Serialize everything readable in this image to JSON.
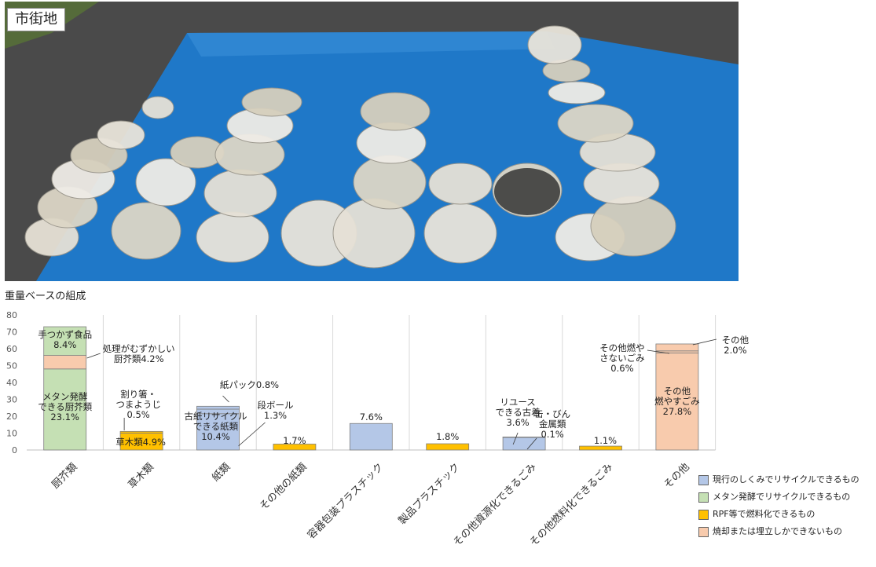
{
  "photo": {
    "label": "市街地",
    "description_icon": "garbage-bags-on-blue-tarp-photo"
  },
  "chart_subtitle": "重量ベースの組成",
  "colors": {
    "recyclable": "#b4c7e7",
    "methane": "#c5e0b4",
    "rpf": "#ffc000",
    "burn_landfill": "#f8cbad",
    "bar_border": "#7f7f7f",
    "grid": "#d9d9d9",
    "tarp": "#1f78c8",
    "asphalt": "#4a4a4a"
  },
  "legend": [
    {
      "label": "現行のしくみでリサイクルできるもの",
      "color_key": "recyclable"
    },
    {
      "label": "メタン発酵でリサイクルできるもの",
      "color_key": "methane"
    },
    {
      "label": "RPF等で燃料化できるもの",
      "color_key": "rpf"
    },
    {
      "label": "焼却または埋立しかできないもの",
      "color_key": "burn_landfill"
    }
  ],
  "chart_data": {
    "type": "bar",
    "stacked": true,
    "title": "",
    "ylim": [
      0,
      80
    ],
    "yticks": [
      0,
      10,
      20,
      30,
      40,
      50,
      60,
      70,
      80
    ],
    "gridlines": "vertical separators between categories",
    "categories": [
      "厨芥類",
      "草木類",
      "紙類",
      "その他の紙類",
      "容器包装プラスチック",
      "製品プラスチック",
      "その他資源化できるごみ",
      "その他燃料化できるごみ",
      "その他"
    ],
    "stacks": [
      [
        {
          "label": "メタン発酵できる厨芥類",
          "pct": "23.1%",
          "value": 48,
          "color_key": "methane"
        },
        {
          "label": "処理がむずかしい厨芥類",
          "pct": "4.2%",
          "value": 8,
          "color_key": "burn_landfill"
        },
        {
          "label": "手つかず食品",
          "pct": "8.4%",
          "value": 17,
          "color_key": "methane"
        }
      ],
      [
        {
          "label": "草木類",
          "pct": "4.9%",
          "value": 10,
          "color_key": "rpf"
        },
        {
          "label": "割り箸・つまようじ",
          "pct": "0.5%",
          "value": 1,
          "color_key": "rpf"
        }
      ],
      [
        {
          "label": "古紙リサイクルできる紙類",
          "pct": "10.4%",
          "value": 21.5,
          "color_key": "recyclable"
        },
        {
          "label": "段ボール",
          "pct": "1.3%",
          "value": 2.7,
          "color_key": "recyclable"
        },
        {
          "label": "紙パック",
          "pct": "0.8%",
          "value": 1.7,
          "color_key": "recyclable"
        }
      ],
      [
        {
          "label": "",
          "pct": "1.7%",
          "value": 3.5,
          "color_key": "rpf"
        }
      ],
      [
        {
          "label": "",
          "pct": "7.6%",
          "value": 15.7,
          "color_key": "recyclable"
        }
      ],
      [
        {
          "label": "",
          "pct": "1.8%",
          "value": 3.7,
          "color_key": "rpf"
        }
      ],
      [
        {
          "label": "リユースできる古着",
          "pct": "3.6%",
          "value": 7.5,
          "color_key": "recyclable"
        },
        {
          "label": "缶・びん金属類",
          "pct": "0.1%",
          "value": 0.2,
          "color_key": "recyclable"
        }
      ],
      [
        {
          "label": "",
          "pct": "1.1%",
          "value": 2.3,
          "color_key": "rpf"
        }
      ],
      [
        {
          "label": "その他燃やすごみ",
          "pct": "27.8%",
          "value": 57.5,
          "color_key": "burn_landfill"
        },
        {
          "label": "その他燃やさないごみ",
          "pct": "0.6%",
          "value": 1.2,
          "color_key": "burn_landfill"
        },
        {
          "label": "その他",
          "pct": "2.0%",
          "value": 4.1,
          "color_key": "burn_landfill"
        }
      ]
    ],
    "annotations": [
      {
        "text": "手つかず食品",
        "pct": "8.4%"
      },
      {
        "text": "処理がむずかしい",
        "text2": "厨芥類4.2%"
      },
      {
        "text": "メタン発酵",
        "text2": "できる厨芥類",
        "pct": "23.1%"
      },
      {
        "text": "割り箸・",
        "text2": "つまようじ",
        "pct": "0.5%"
      },
      {
        "text": "草木類4.9%"
      },
      {
        "text": "紙パック0.8%"
      },
      {
        "text": "段ボール",
        "pct": "1.3%"
      },
      {
        "text": "古紙リサイクル",
        "text2": "できる紙類",
        "pct": "10.4%"
      },
      {
        "text": "リユース",
        "text2": "できる古着",
        "pct": "3.6%"
      },
      {
        "text": "缶・びん",
        "text2": "金属類",
        "pct": "0.1%"
      },
      {
        "text": "その他燃や",
        "text2": "さないごみ",
        "pct": "0.6%"
      },
      {
        "text": "その他",
        "pct": "2.0%"
      },
      {
        "text": "その他",
        "text2": "燃やすごみ",
        "pct": "27.8%"
      }
    ]
  }
}
